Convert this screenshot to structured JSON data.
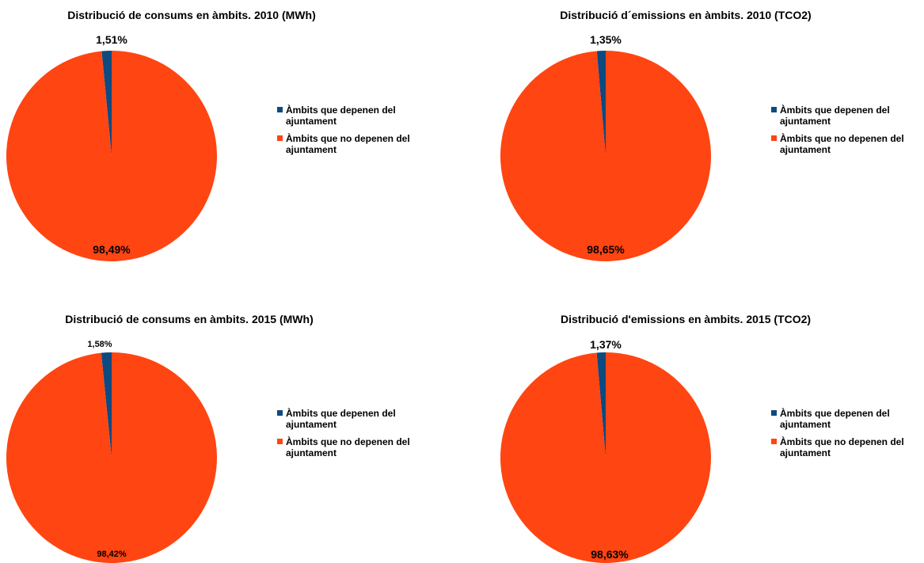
{
  "colors": {
    "series_a": "#0e4a7f",
    "series_b": "#ff4512"
  },
  "legend": {
    "a_line1": "Àmbits que depenen del",
    "a_line2": "ajuntament",
    "b_line1": "Àmbits que no depenen del",
    "b_line2": "ajuntament"
  },
  "chart_data": [
    {
      "type": "pie",
      "title": "Distribució de consums en àmbits. 2010 (MWh)",
      "categories": [
        "Àmbits que depenen del ajuntament",
        "Àmbits que no depenen del ajuntament"
      ],
      "values": [
        1.51,
        98.49
      ],
      "labels": [
        "1,51%",
        "98,49%"
      ],
      "legend_position": "right"
    },
    {
      "type": "pie",
      "title": "Distribució d´emissions en àmbits. 2010 (TCO2)",
      "categories": [
        "Àmbits que depenen del ajuntament",
        "Àmbits que no depenen del ajuntament"
      ],
      "values": [
        1.35,
        98.65
      ],
      "labels": [
        "1,35%",
        "98,65%"
      ],
      "legend_position": "right"
    },
    {
      "type": "pie",
      "title": "Distribució de consums en àmbits. 2015 (MWh)",
      "categories": [
        "Àmbits que depenen del ajuntament",
        "Àmbits que no depenen del ajuntament"
      ],
      "values": [
        1.58,
        98.42
      ],
      "labels": [
        "1,58%",
        "98,42%"
      ],
      "legend_position": "right"
    },
    {
      "type": "pie",
      "title": "Distribució d'emissions en àmbits. 2015 (TCO2)",
      "categories": [
        "Àmbits que depenen del ajuntament",
        "Àmbits que no depenen del ajuntament"
      ],
      "values": [
        1.37,
        98.63
      ],
      "labels": [
        "1,37%",
        "98,63%"
      ],
      "legend_position": "right"
    }
  ]
}
